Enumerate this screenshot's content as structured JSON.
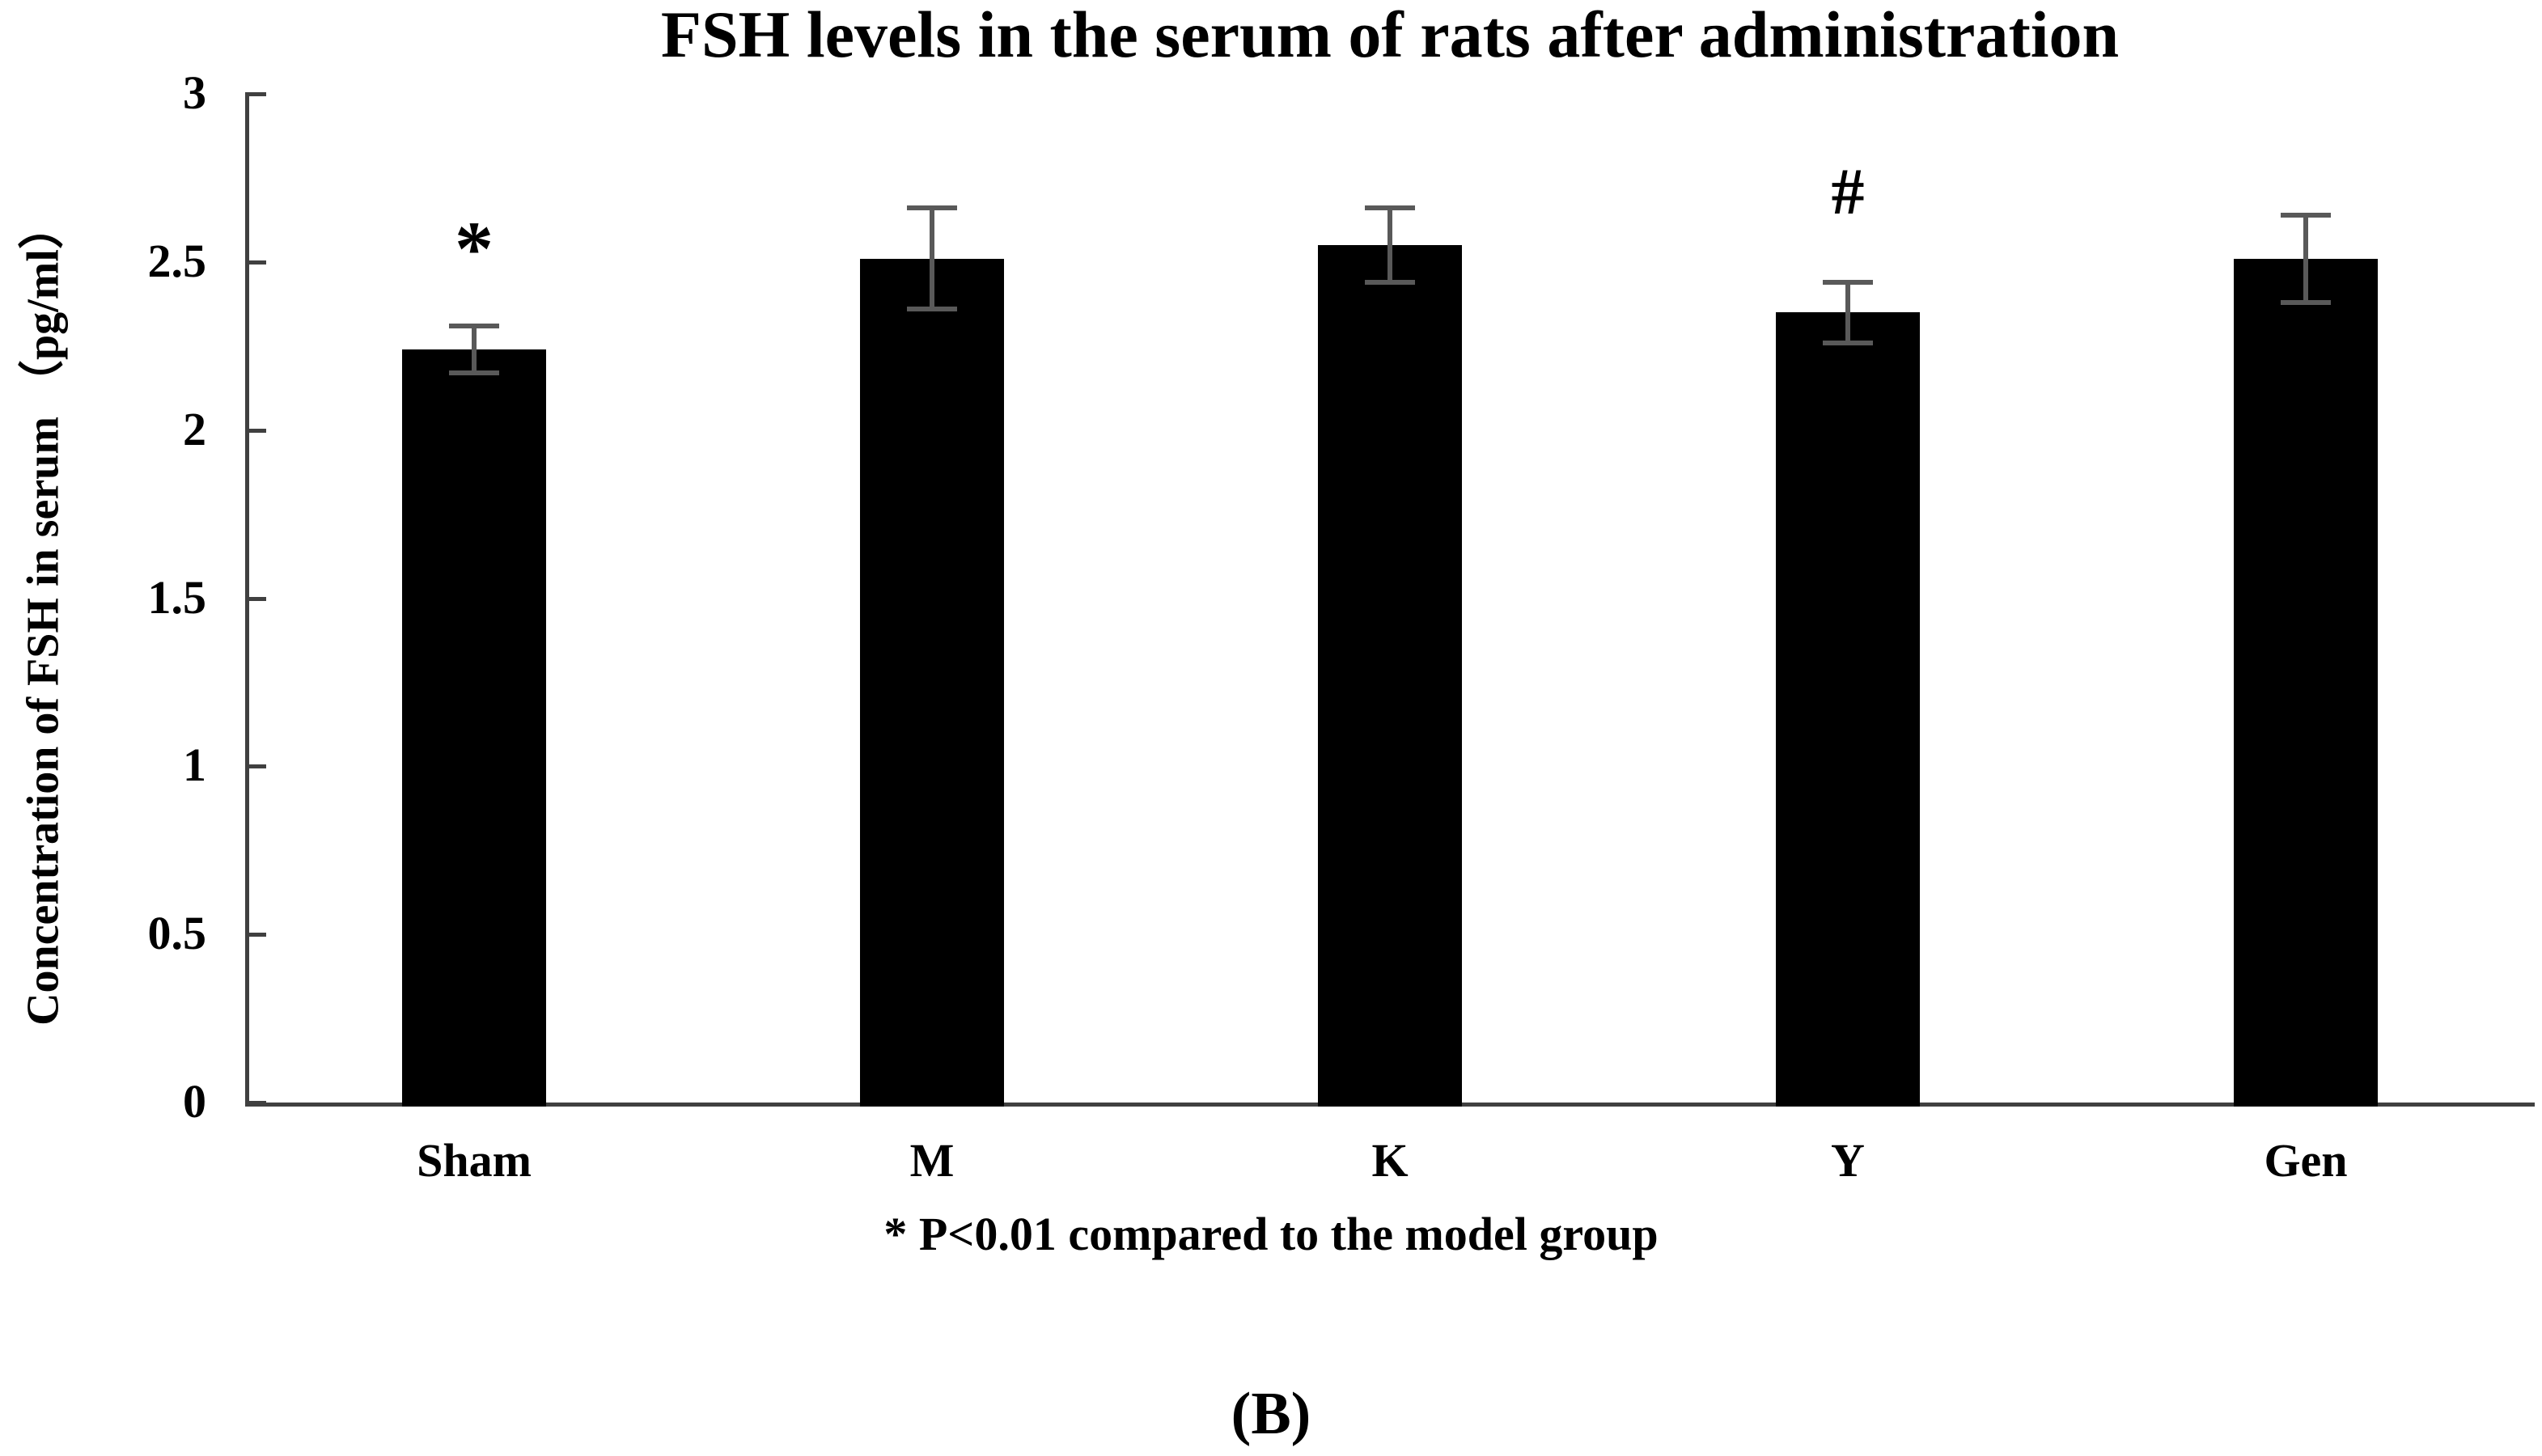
{
  "figure": {
    "panel_label": "(B)"
  },
  "chart_data": {
    "type": "bar",
    "title": "FSH levels in the serum of rats after administration",
    "ylabel": "Concentration of FSH in serum （pg/ml）",
    "xlabel": "",
    "footnote": "* P<0.01 compared to the model group",
    "categories": [
      "Sham",
      "M",
      "K",
      "Y",
      "Gen"
    ],
    "values": [
      2.24,
      2.51,
      2.55,
      2.35,
      2.51
    ],
    "error_bars": [
      0.07,
      0.15,
      0.11,
      0.09,
      0.13
    ],
    "annotations": [
      {
        "category": "Sham",
        "symbol": "*"
      },
      {
        "category": "Y",
        "symbol": "#"
      }
    ],
    "ylim": [
      0,
      3
    ],
    "yticks": [
      {
        "value": 0,
        "label": "0"
      },
      {
        "value": 0.5,
        "label": "0.5"
      },
      {
        "value": 1,
        "label": "1"
      },
      {
        "value": 1.5,
        "label": "1.5"
      },
      {
        "value": 2,
        "label": "2"
      },
      {
        "value": 2.5,
        "label": "2.5"
      },
      {
        "value": 3,
        "label": "3"
      }
    ],
    "grid": false,
    "legend": "none",
    "colors": {
      "bar_fill": "#000000",
      "error_bar": "#595959",
      "axis": "#404040",
      "text": "#000000",
      "background": "#ffffff"
    }
  }
}
